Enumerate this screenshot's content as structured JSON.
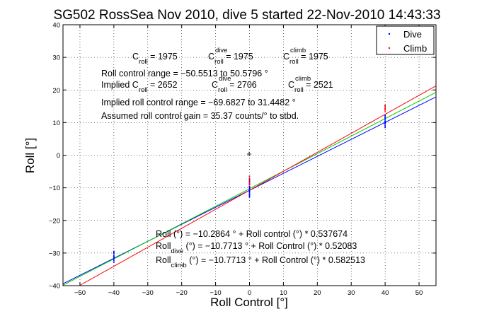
{
  "chart_data": {
    "type": "scatter",
    "title": "SG502 RossSea Nov 2010, dive 5 started 22-Nov-2010 14:43:33",
    "xlabel": "Roll Control [°]",
    "ylabel": "Roll [°]",
    "xlim": [
      -55,
      55
    ],
    "ylim": [
      -40,
      40
    ],
    "xticks": [
      "−50",
      "−40",
      "−30",
      "−20",
      "−10",
      "0",
      "10",
      "20",
      "30",
      "40",
      "50"
    ],
    "yticks": [
      "−40",
      "−30",
      "−20",
      "−10",
      "0",
      "10",
      "20",
      "30",
      "40"
    ],
    "grid": true,
    "legend_position": "top-right",
    "legend": [
      {
        "label": "Dive",
        "color": "#0000ff"
      },
      {
        "label": "Climb",
        "color": "#ff0000"
      }
    ],
    "fit_lines": [
      {
        "color": "#0000ff",
        "intercept": -10.7713,
        "slope": 0.52083
      },
      {
        "color": "#00cc00",
        "intercept": -10.2864,
        "slope": 0.537674
      },
      {
        "color": "#ff0000",
        "intercept": -10.7713,
        "slope": 0.582513
      }
    ],
    "series": [
      {
        "name": "Dive",
        "color": "#0000ff",
        "points": [
          [
            -40,
            -29.5
          ],
          [
            -40,
            -30.2
          ],
          [
            -40,
            -30.8
          ],
          [
            -40,
            -31.3
          ],
          [
            -40,
            -31.8
          ],
          [
            -40,
            -32.3
          ],
          [
            -40,
            -32.8
          ],
          [
            -40,
            -29.9
          ],
          [
            -40,
            -31.1
          ],
          [
            0,
            -7.5
          ],
          [
            0,
            -8.0
          ],
          [
            0,
            -8.6
          ],
          [
            0,
            -9.1
          ],
          [
            0,
            -9.6
          ],
          [
            0,
            -10.0
          ],
          [
            0,
            -10.4
          ],
          [
            0,
            -10.8
          ],
          [
            0,
            -11.2
          ],
          [
            0,
            -11.6
          ],
          [
            0,
            -12.0
          ],
          [
            0,
            -12.4
          ],
          [
            0,
            -12.8
          ],
          [
            0,
            -11.0
          ],
          [
            0,
            -9.8
          ],
          [
            40,
            8.5
          ],
          [
            40,
            9.0
          ],
          [
            40,
            9.5
          ],
          [
            40,
            10.0
          ],
          [
            40,
            10.5
          ],
          [
            40,
            11.0
          ],
          [
            40,
            11.4
          ],
          [
            40,
            11.8
          ],
          [
            40,
            12.2
          ],
          [
            40,
            10.3
          ],
          [
            40,
            9.7
          ]
        ]
      },
      {
        "name": "Climb",
        "color": "#ff0000",
        "points": [
          [
            0,
            -6.5
          ],
          [
            0,
            -7.2
          ],
          [
            0,
            -7.8
          ],
          [
            0,
            -8.4
          ],
          [
            0,
            -9.0
          ],
          [
            0,
            -8.7
          ],
          [
            40,
            13.5
          ],
          [
            40,
            14.0
          ],
          [
            40,
            14.5
          ],
          [
            40,
            15.0
          ],
          [
            40,
            15.3
          ],
          [
            40,
            14.2
          ]
        ]
      }
    ],
    "annotations": {
      "c_roll_line": {
        "c1": "C",
        "c1_sub": "roll",
        "c1_val": " = 1975",
        "c2": "C",
        "c2_sup": "dive",
        "c2_sub": "roll",
        "c2_val": " = 1975",
        "c3": "C",
        "c3_sup": "climb",
        "c3_sub": "roll",
        "c3_val": " = 1975"
      },
      "range_line": "Roll control range = −50.5513 to 50.5796 °",
      "implied_line": {
        "c1": "Implied C",
        "c1_sub": "roll",
        "c1_val": " = 2652",
        "c2": "C",
        "c2_sup": "dive",
        "c2_sub": "roll",
        "c2_val": " = 2706",
        "c3": "C",
        "c3_sup": "climb",
        "c3_sub": "roll",
        "c3_val": " = 2521"
      },
      "implied_range_line": "Implied roll control range = −69.6827 to 31.4482 °",
      "gain_line": "Assumed roll control gain = 35.37 counts/° to stbd.",
      "fit1": "Roll (°) = −10.2864 ° + Roll control (°) * 0.537674",
      "fit2_a": "Roll",
      "fit2_sub": "dive",
      "fit2_b": " (°) = −10.7713 ° + Roll Control (°) * 0.52083",
      "fit3_a": "Roll",
      "fit3_sub": "climb",
      "fit3_b": " (°) = −10.7713 ° + Roll Control (°) * 0.582513"
    }
  }
}
